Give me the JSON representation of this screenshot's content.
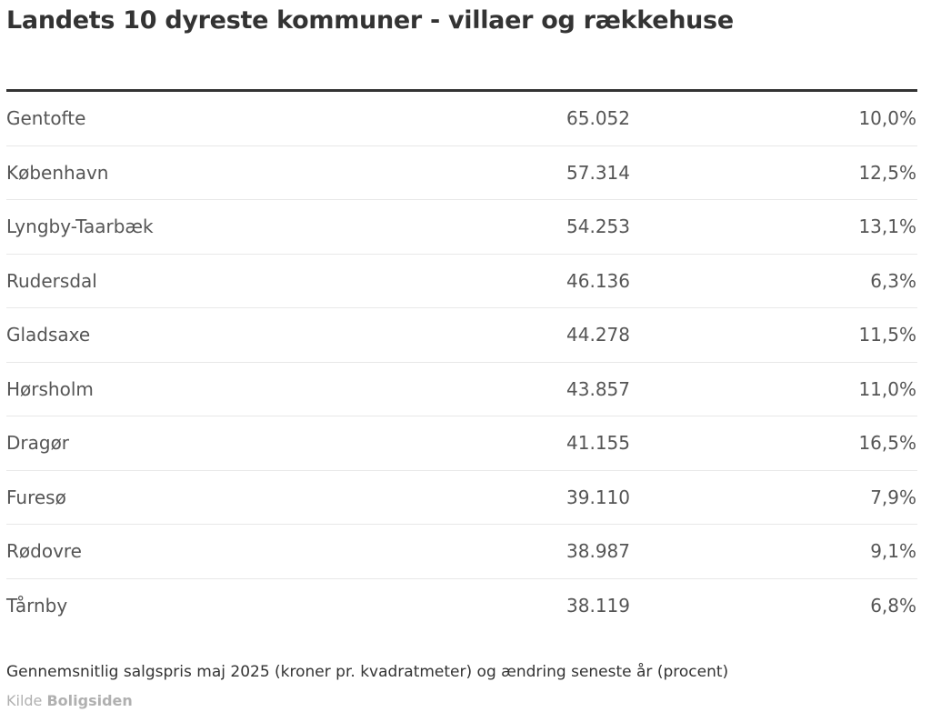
{
  "title": "Landets 10 dyreste kommuner - villaer og rækkehuse",
  "rows": [
    {
      "name": "Gentofte",
      "price": "65.052",
      "change": "10,0%"
    },
    {
      "name": "København",
      "price": "57.314",
      "change": "12,5%"
    },
    {
      "name": "Lyngby-Taarbæk",
      "price": "54.253",
      "change": "13,1%"
    },
    {
      "name": "Rudersdal",
      "price": "46.136",
      "change": "6,3%"
    },
    {
      "name": "Gladsaxe",
      "price": "44.278",
      "change": "11,5%"
    },
    {
      "name": "Hørsholm",
      "price": "43.857",
      "change": "11,0%"
    },
    {
      "name": "Dragør",
      "price": "41.155",
      "change": "16,5%"
    },
    {
      "name": "Furesø",
      "price": "39.110",
      "change": "7,9%"
    },
    {
      "name": "Rødovre",
      "price": "38.987",
      "change": "9,1%"
    },
    {
      "name": "Tårnby",
      "price": "38.119",
      "change": "6,8%"
    }
  ],
  "footnote": "Gennemsnitlig salgspris maj 2025 (kroner pr. kvadratmeter) og ændring seneste år (procent)",
  "source": {
    "label": "Kilde",
    "name": "Boligsiden"
  },
  "colors": {
    "text": "#333333",
    "cell_text": "#555555",
    "header_rule": "#333333",
    "row_divider": "#e8e8e8",
    "source_text": "#b0b0b0"
  }
}
